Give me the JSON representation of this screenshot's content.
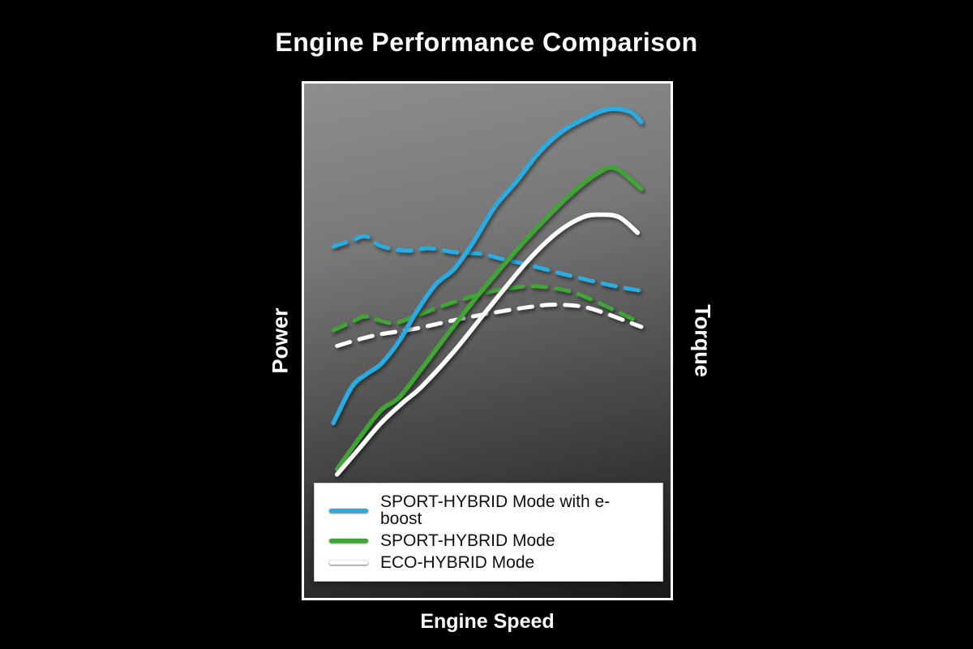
{
  "title": "Engine Performance Comparison",
  "axes": {
    "left_label": "Power",
    "right_label": "Torque",
    "bottom_label": "Engine Speed"
  },
  "colors": {
    "sport_hybrid_eboost": "#29abe2",
    "sport_hybrid": "#3fa535",
    "eco_hybrid": "#ffffff",
    "page_background": "#000000",
    "plot_border": "#ffffff",
    "legend_background": "#ffffff",
    "legend_text": "#111111"
  },
  "legend": {
    "position": "bottom-inside",
    "entries": [
      {
        "label": "SPORT-HYBRID Mode with e-boost",
        "color": "#29abe2"
      },
      {
        "label": "SPORT-HYBRID Mode",
        "color": "#3fa535"
      },
      {
        "label": "ECO-HYBRID Mode",
        "color": "#ffffff"
      }
    ]
  },
  "chart_data": {
    "type": "line",
    "title": "Engine Performance Comparison",
    "xlabel": "Engine Speed",
    "ylabel_left": "Power",
    "ylabel_right": "Torque",
    "xlim": [
      0,
      100
    ],
    "ylim": [
      0,
      100
    ],
    "x_ticks": [],
    "y_ticks": [],
    "grid": false,
    "note": "Qualitative dyno-style curves; axes unscaled. Solid = Power (left axis), Dashed = Torque (right axis). Values normalized 0-100.",
    "series": [
      {
        "name": "Power - SPORT-HYBRID Mode with e-boost",
        "axis": "left-power",
        "style": "solid",
        "color": "#29abe2",
        "points": [
          [
            8,
            34
          ],
          [
            13,
            41
          ],
          [
            17,
            43.5
          ],
          [
            21,
            45.5
          ],
          [
            26,
            50
          ],
          [
            31,
            56
          ],
          [
            36,
            61
          ],
          [
            41,
            64
          ],
          [
            46,
            69
          ],
          [
            52,
            76
          ],
          [
            58,
            81
          ],
          [
            64,
            86.5
          ],
          [
            70,
            90.5
          ],
          [
            76,
            93
          ],
          [
            83,
            95
          ],
          [
            89,
            94.5
          ],
          [
            92,
            92.5
          ]
        ]
      },
      {
        "name": "Power - SPORT-HYBRID Mode",
        "axis": "left-power",
        "style": "solid",
        "color": "#3fa535",
        "points": [
          [
            9,
            25
          ],
          [
            15,
            31
          ],
          [
            21,
            36.5
          ],
          [
            26,
            39
          ],
          [
            32,
            44.5
          ],
          [
            41,
            53
          ],
          [
            50,
            61
          ],
          [
            61,
            70
          ],
          [
            72,
            78
          ],
          [
            80,
            82.5
          ],
          [
            85,
            83.5
          ],
          [
            92,
            79.5
          ]
        ]
      },
      {
        "name": "Power - ECO-HYBRID Mode",
        "axis": "left-power",
        "style": "solid",
        "color": "#ffffff",
        "points": [
          [
            9,
            24
          ],
          [
            15,
            29
          ],
          [
            21,
            34
          ],
          [
            27,
            38
          ],
          [
            32,
            41
          ],
          [
            41,
            48
          ],
          [
            50,
            56
          ],
          [
            61,
            65.5
          ],
          [
            69,
            71
          ],
          [
            76,
            74
          ],
          [
            81,
            74.5
          ],
          [
            86,
            74
          ],
          [
            91,
            71
          ]
        ]
      },
      {
        "name": "Torque - SPORT-HYBRID Mode with e-boost",
        "axis": "right-torque",
        "style": "dashed",
        "color": "#29abe2",
        "points": [
          [
            8,
            68.3
          ],
          [
            13,
            69.5
          ],
          [
            17,
            70.3
          ],
          [
            21,
            68.4
          ],
          [
            28,
            67.5
          ],
          [
            34,
            68
          ],
          [
            41,
            67.2
          ],
          [
            48,
            66.9
          ],
          [
            54,
            65.9
          ],
          [
            61,
            64.8
          ],
          [
            69,
            63.3
          ],
          [
            78,
            61.7
          ],
          [
            85,
            60.6
          ],
          [
            92,
            59.7
          ]
        ]
      },
      {
        "name": "Torque - SPORT-HYBRID Mode",
        "axis": "right-torque",
        "style": "dashed",
        "color": "#3fa535",
        "points": [
          [
            8,
            52
          ],
          [
            14,
            54
          ],
          [
            17,
            54.7
          ],
          [
            24,
            53.4
          ],
          [
            30,
            54.7
          ],
          [
            37,
            56.6
          ],
          [
            43,
            58
          ],
          [
            50,
            59.4
          ],
          [
            56,
            60.2
          ],
          [
            63,
            60.6
          ],
          [
            72,
            59.7
          ],
          [
            80,
            57.5
          ],
          [
            92,
            53.4
          ]
        ]
      },
      {
        "name": "Torque - ECO-HYBRID Mode",
        "axis": "right-torque",
        "style": "dashed",
        "color": "#ffffff",
        "points": [
          [
            9,
            49
          ],
          [
            19,
            51
          ],
          [
            30,
            52.3
          ],
          [
            41,
            54
          ],
          [
            52,
            55.5
          ],
          [
            63,
            56.7
          ],
          [
            69,
            57
          ],
          [
            78,
            56.3
          ],
          [
            92,
            52.7
          ]
        ]
      }
    ]
  }
}
